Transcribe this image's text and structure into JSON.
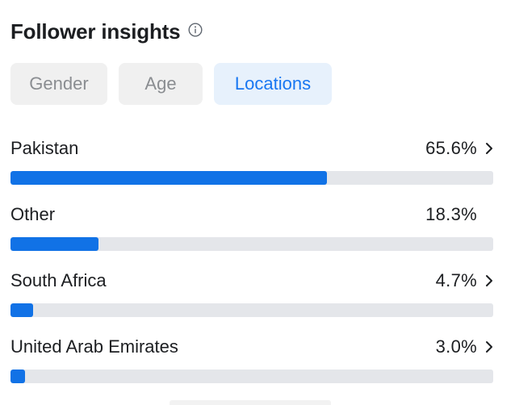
{
  "header": {
    "title": "Follower insights",
    "info_icon": "info-icon"
  },
  "tabs": [
    {
      "label": "Gender",
      "active": false
    },
    {
      "label": "Age",
      "active": false
    },
    {
      "label": "Locations",
      "active": true
    }
  ],
  "locations": [
    {
      "label": "Pakistan",
      "value": "65.6%",
      "fraction": 0.656,
      "has_chevron": true
    },
    {
      "label": "Other",
      "value": "18.3%",
      "fraction": 0.183,
      "has_chevron": false
    },
    {
      "label": "South Africa",
      "value": "4.7%",
      "fraction": 0.047,
      "has_chevron": true
    },
    {
      "label": "United Arab Emirates",
      "value": "3.0%",
      "fraction": 0.03,
      "has_chevron": true
    }
  ],
  "colors": {
    "accent": "#1877f2",
    "bar_fill": "#1172e6",
    "bar_track": "#e4e6ea",
    "tab_bg": "#f0f0f0",
    "tab_active_bg": "#e7f1fc"
  }
}
